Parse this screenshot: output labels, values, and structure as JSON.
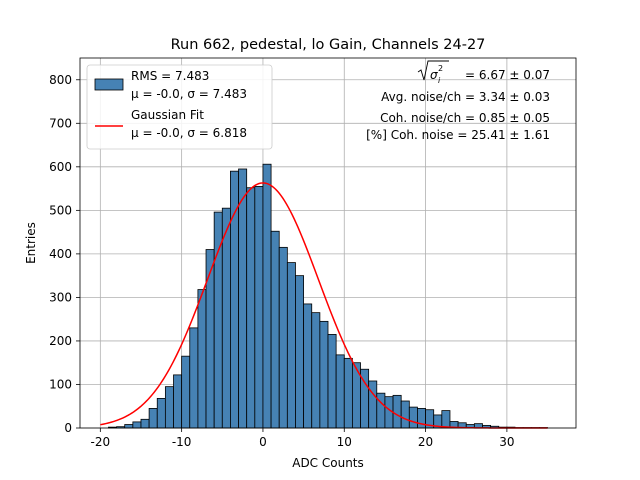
{
  "chart_data": {
    "type": "bar",
    "title": "Run 662, pedestal, lo Gain, Channels 24-27",
    "xlabel": "ADC Counts",
    "ylabel": "Entries",
    "xlim": [
      -22.5,
      38.5
    ],
    "ylim": [
      0,
      850
    ],
    "xticks": [
      -20,
      -10,
      0,
      10,
      20,
      30
    ],
    "yticks": [
      0,
      100,
      200,
      300,
      400,
      500,
      600,
      700,
      800
    ],
    "grid": true,
    "bin_width": 1,
    "bin_starts": [
      -19,
      -18,
      -17,
      -16,
      -15,
      -14,
      -13,
      -12,
      -11,
      -10,
      -9,
      -8,
      -7,
      -6,
      -5,
      -4,
      -3,
      -2,
      -1,
      0,
      1,
      2,
      3,
      4,
      5,
      6,
      7,
      8,
      9,
      10,
      11,
      12,
      13,
      14,
      15,
      16,
      17,
      18,
      19,
      20,
      21,
      22,
      23,
      24,
      25,
      26,
      27,
      28,
      29,
      30,
      31,
      32,
      33,
      34
    ],
    "counts": [
      2,
      3,
      8,
      14,
      20,
      45,
      68,
      95,
      122,
      165,
      230,
      318,
      410,
      496,
      505,
      590,
      595,
      552,
      555,
      606,
      452,
      415,
      380,
      350,
      285,
      265,
      245,
      215,
      168,
      160,
      150,
      135,
      108,
      80,
      72,
      75,
      62,
      48,
      45,
      42,
      30,
      40,
      15,
      12,
      8,
      10,
      6,
      4,
      2,
      2,
      1,
      1,
      1,
      1
    ],
    "fit": {
      "type": "gaussian",
      "mu": -0.0,
      "sigma": 6.818,
      "amplitude": 563,
      "x_range": [
        -20,
        35
      ]
    },
    "colors": {
      "bars": "#4682b4",
      "fit": "#ff0000",
      "grid": "#b0b0b0"
    },
    "legend": {
      "location": "top-left",
      "entries": [
        {
          "line1": "RMS = 7.483",
          "line2": "μ = -0.0, σ = 7.483"
        },
        {
          "line1": "Gaussian Fit",
          "line2": "μ = -0.0, σ = 6.818"
        }
      ]
    },
    "annotations": {
      "sigma_total": "= 6.67 ± 0.07",
      "avg_noise": "Avg. noise/ch = 3.34 ± 0.03",
      "coh_noise": "Coh. noise/ch = 0.85 ± 0.05",
      "pct_coh_noise": "[%] Coh. noise = 25.41 ± 1.61"
    }
  }
}
